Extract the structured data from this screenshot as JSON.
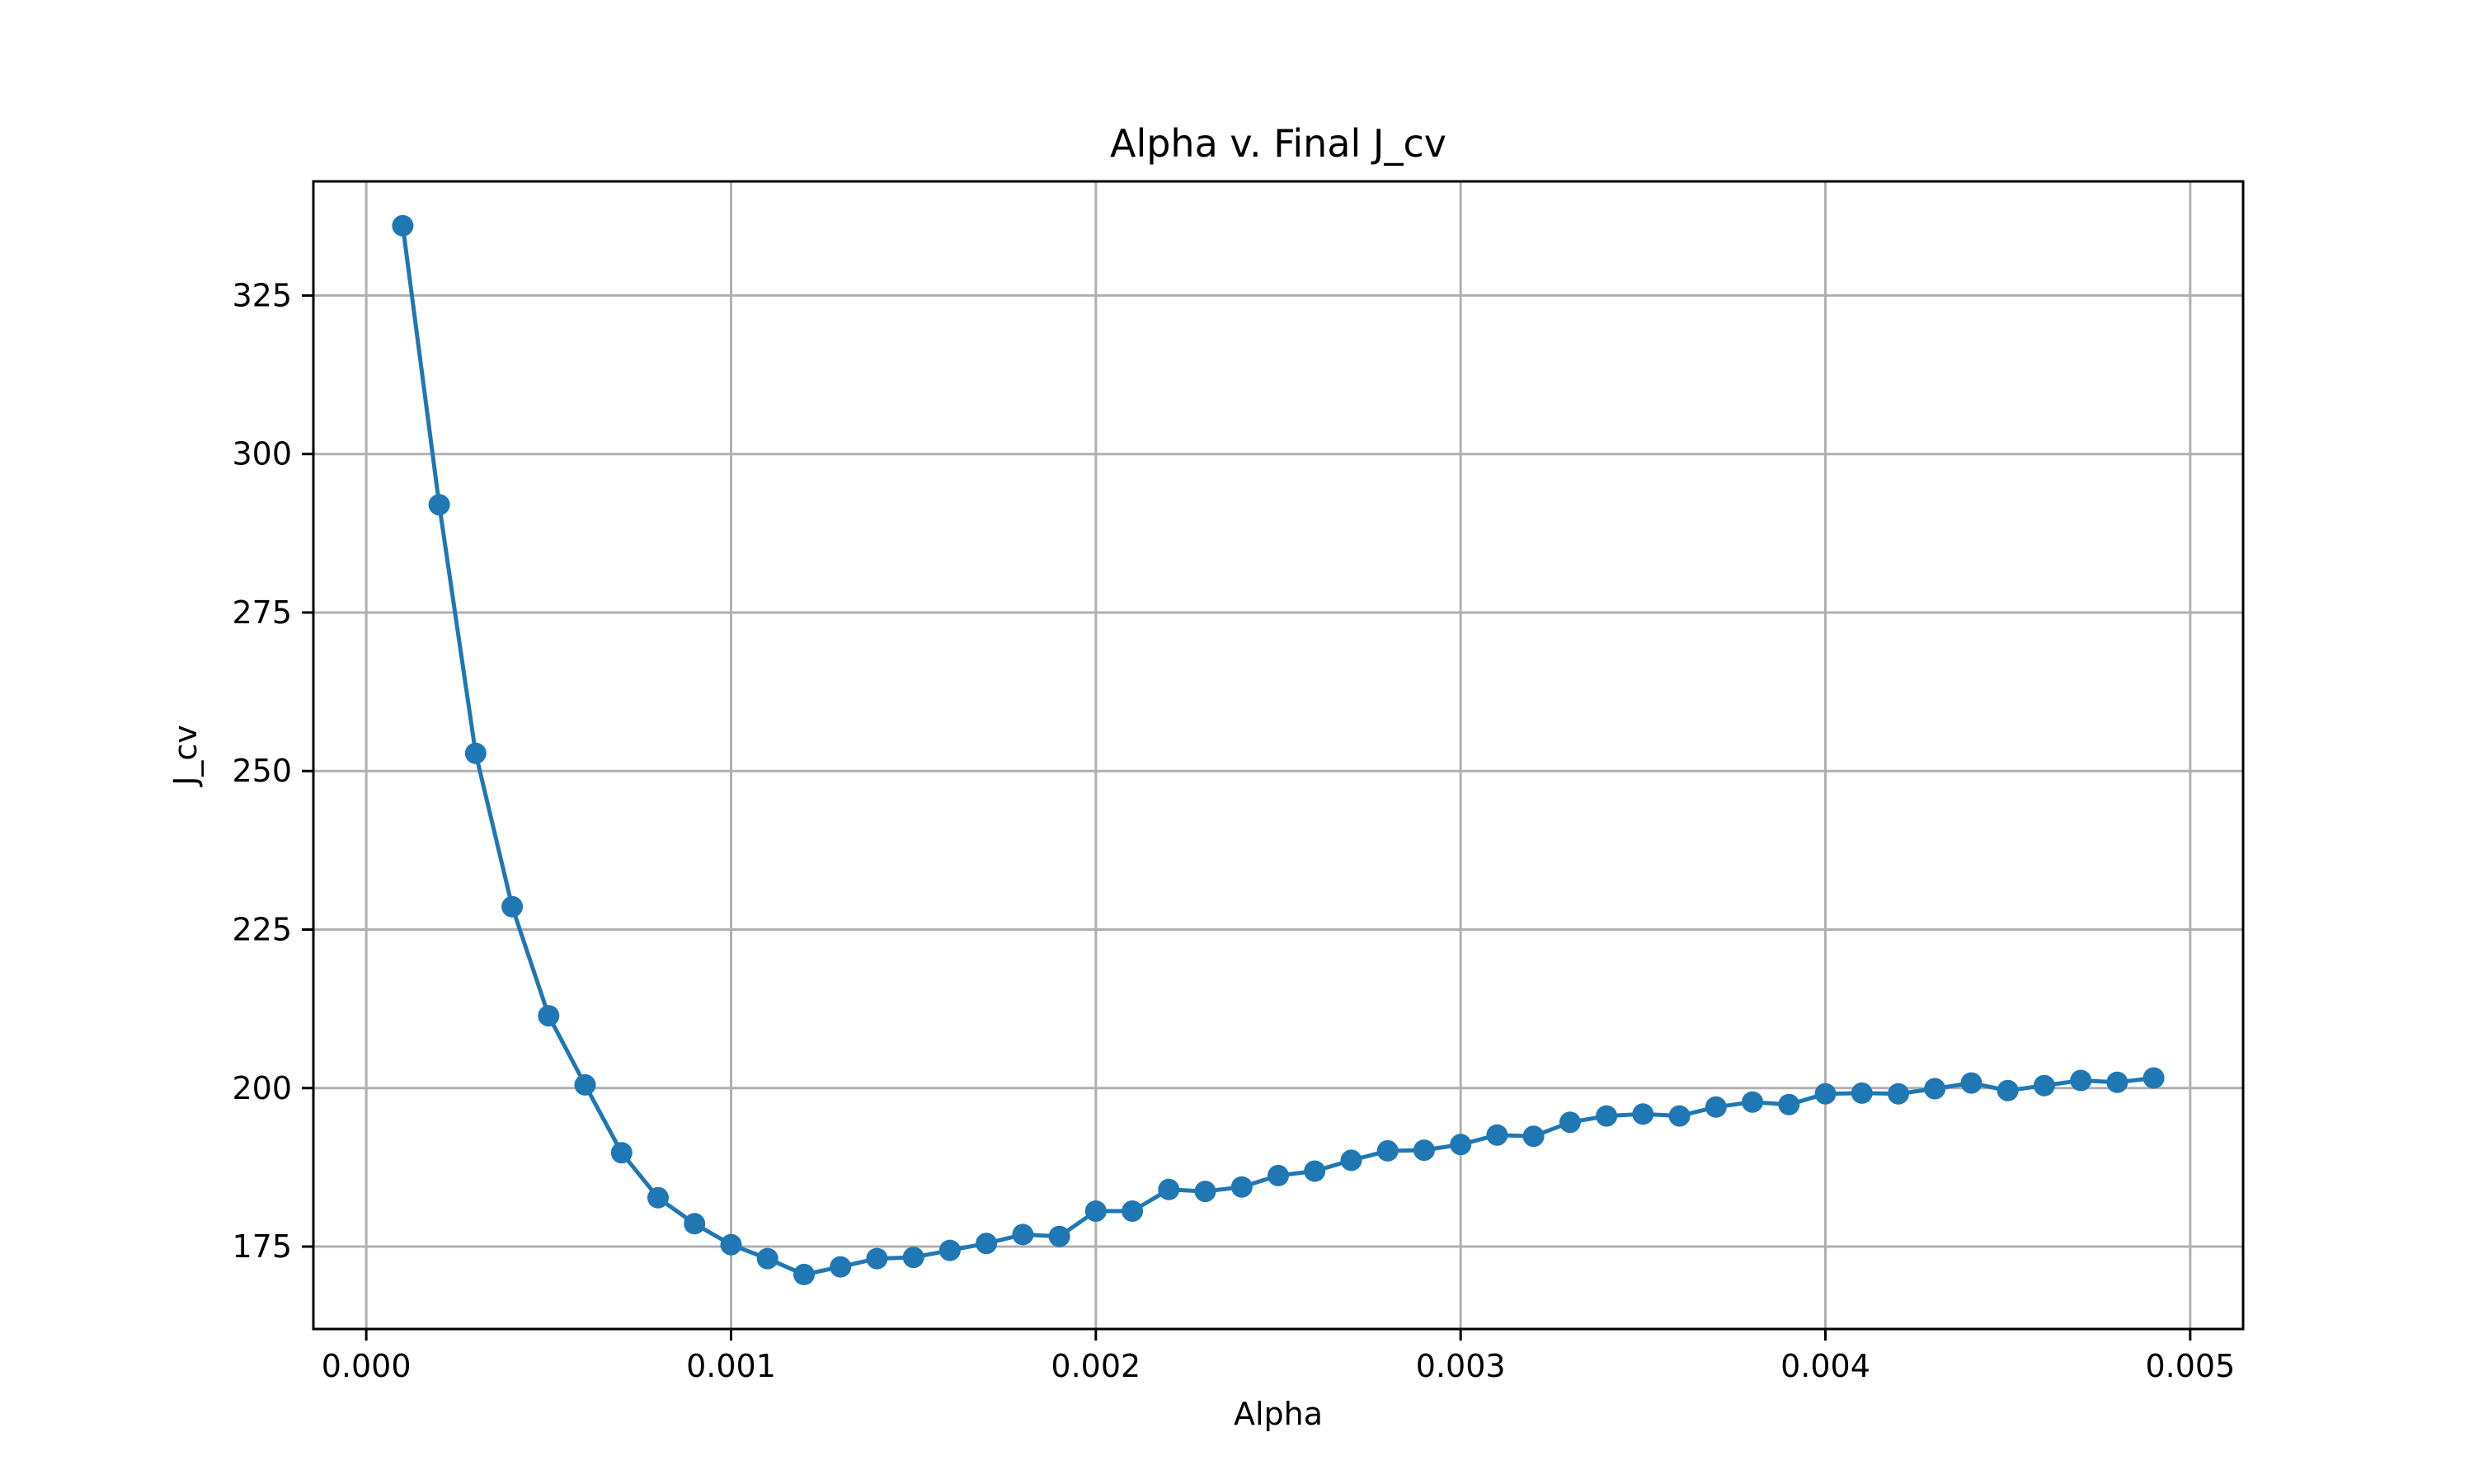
{
  "chart_data": {
    "type": "line",
    "title": "Alpha v. Final J_cv",
    "xlabel": "Alpha",
    "ylabel": "J_cv",
    "xlim": [
      -0.000145,
      0.005145
    ],
    "ylim": [
      162,
      343
    ],
    "x_ticks": [
      0.0,
      0.001,
      0.002,
      0.003,
      0.004,
      0.005
    ],
    "x_tick_labels": [
      "0.000",
      "0.001",
      "0.002",
      "0.003",
      "0.004",
      "0.005"
    ],
    "y_ticks": [
      175,
      200,
      225,
      250,
      275,
      300,
      325
    ],
    "y_tick_labels": [
      "175",
      "200",
      "225",
      "250",
      "275",
      "300",
      "325"
    ],
    "grid": true,
    "marker": "circle",
    "color": "#1f77b4",
    "series": [
      {
        "x": [
          0.0001,
          0.0002,
          0.0003,
          0.0004,
          0.0005,
          0.0006,
          0.0007,
          0.0008,
          0.0009,
          0.001,
          0.0011,
          0.0012,
          0.0013,
          0.0014,
          0.0015,
          0.0016,
          0.0017,
          0.0018,
          0.0019,
          0.002,
          0.0021,
          0.0022,
          0.0023,
          0.0024,
          0.0025,
          0.0026,
          0.0027,
          0.0028,
          0.0029,
          0.003,
          0.0031,
          0.0032,
          0.0033,
          0.0034,
          0.0035,
          0.0036,
          0.0037,
          0.0038,
          0.0039,
          0.004,
          0.0041,
          0.0042,
          0.0043,
          0.0044,
          0.0045,
          0.0046,
          0.0047,
          0.0048,
          0.0049
        ],
        "y": [
          336.0,
          292.0,
          252.8,
          228.6,
          211.4,
          200.5,
          189.8,
          182.7,
          178.6,
          175.3,
          173.1,
          170.6,
          171.8,
          173.1,
          173.3,
          174.4,
          175.5,
          176.9,
          176.6,
          180.6,
          180.6,
          184.0,
          183.7,
          184.4,
          186.2,
          186.9,
          188.6,
          190.1,
          190.2,
          191.1,
          192.6,
          192.4,
          194.6,
          195.6,
          195.9,
          195.6,
          197.0,
          197.8,
          197.4,
          199.1,
          199.2,
          199.1,
          199.9,
          200.8,
          199.6,
          200.4,
          201.2,
          200.9,
          201.6
        ]
      }
    ]
  }
}
